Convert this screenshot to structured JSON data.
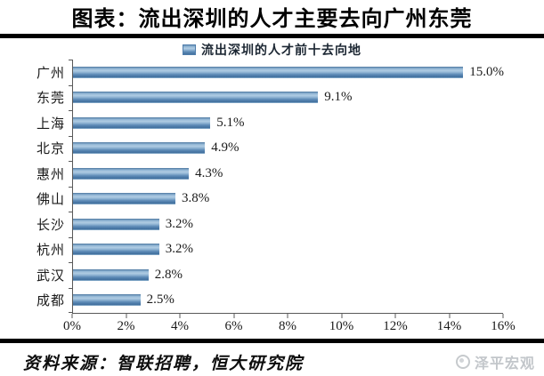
{
  "header": {
    "title": "图表：流出深圳的人才主要去向广州东莞"
  },
  "chart_data": {
    "type": "bar",
    "orientation": "horizontal",
    "legend": "流出深圳的人才前十去向地",
    "legend_position": "top",
    "categories": [
      "广州",
      "东莞",
      "上海",
      "北京",
      "惠州",
      "佛山",
      "长沙",
      "杭州",
      "武汉",
      "成都"
    ],
    "values": [
      15.0,
      9.1,
      5.1,
      4.9,
      4.3,
      3.8,
      3.2,
      3.2,
      2.8,
      2.5
    ],
    "value_labels": [
      "15.0%",
      "9.1%",
      "5.1%",
      "4.9%",
      "4.3%",
      "3.8%",
      "3.2%",
      "3.2%",
      "2.8%",
      "2.5%"
    ],
    "x_tick_labels": [
      "0%",
      "2%",
      "4%",
      "6%",
      "8%",
      "10%",
      "12%",
      "14%",
      "16%"
    ],
    "xlim": [
      0,
      16
    ],
    "grid": false,
    "bar_color": "#6f9ac3",
    "axis_color": "#595959"
  },
  "footer": {
    "source": "资料来源：智联招聘，恒大研究院",
    "brand": "泽平宏观"
  }
}
